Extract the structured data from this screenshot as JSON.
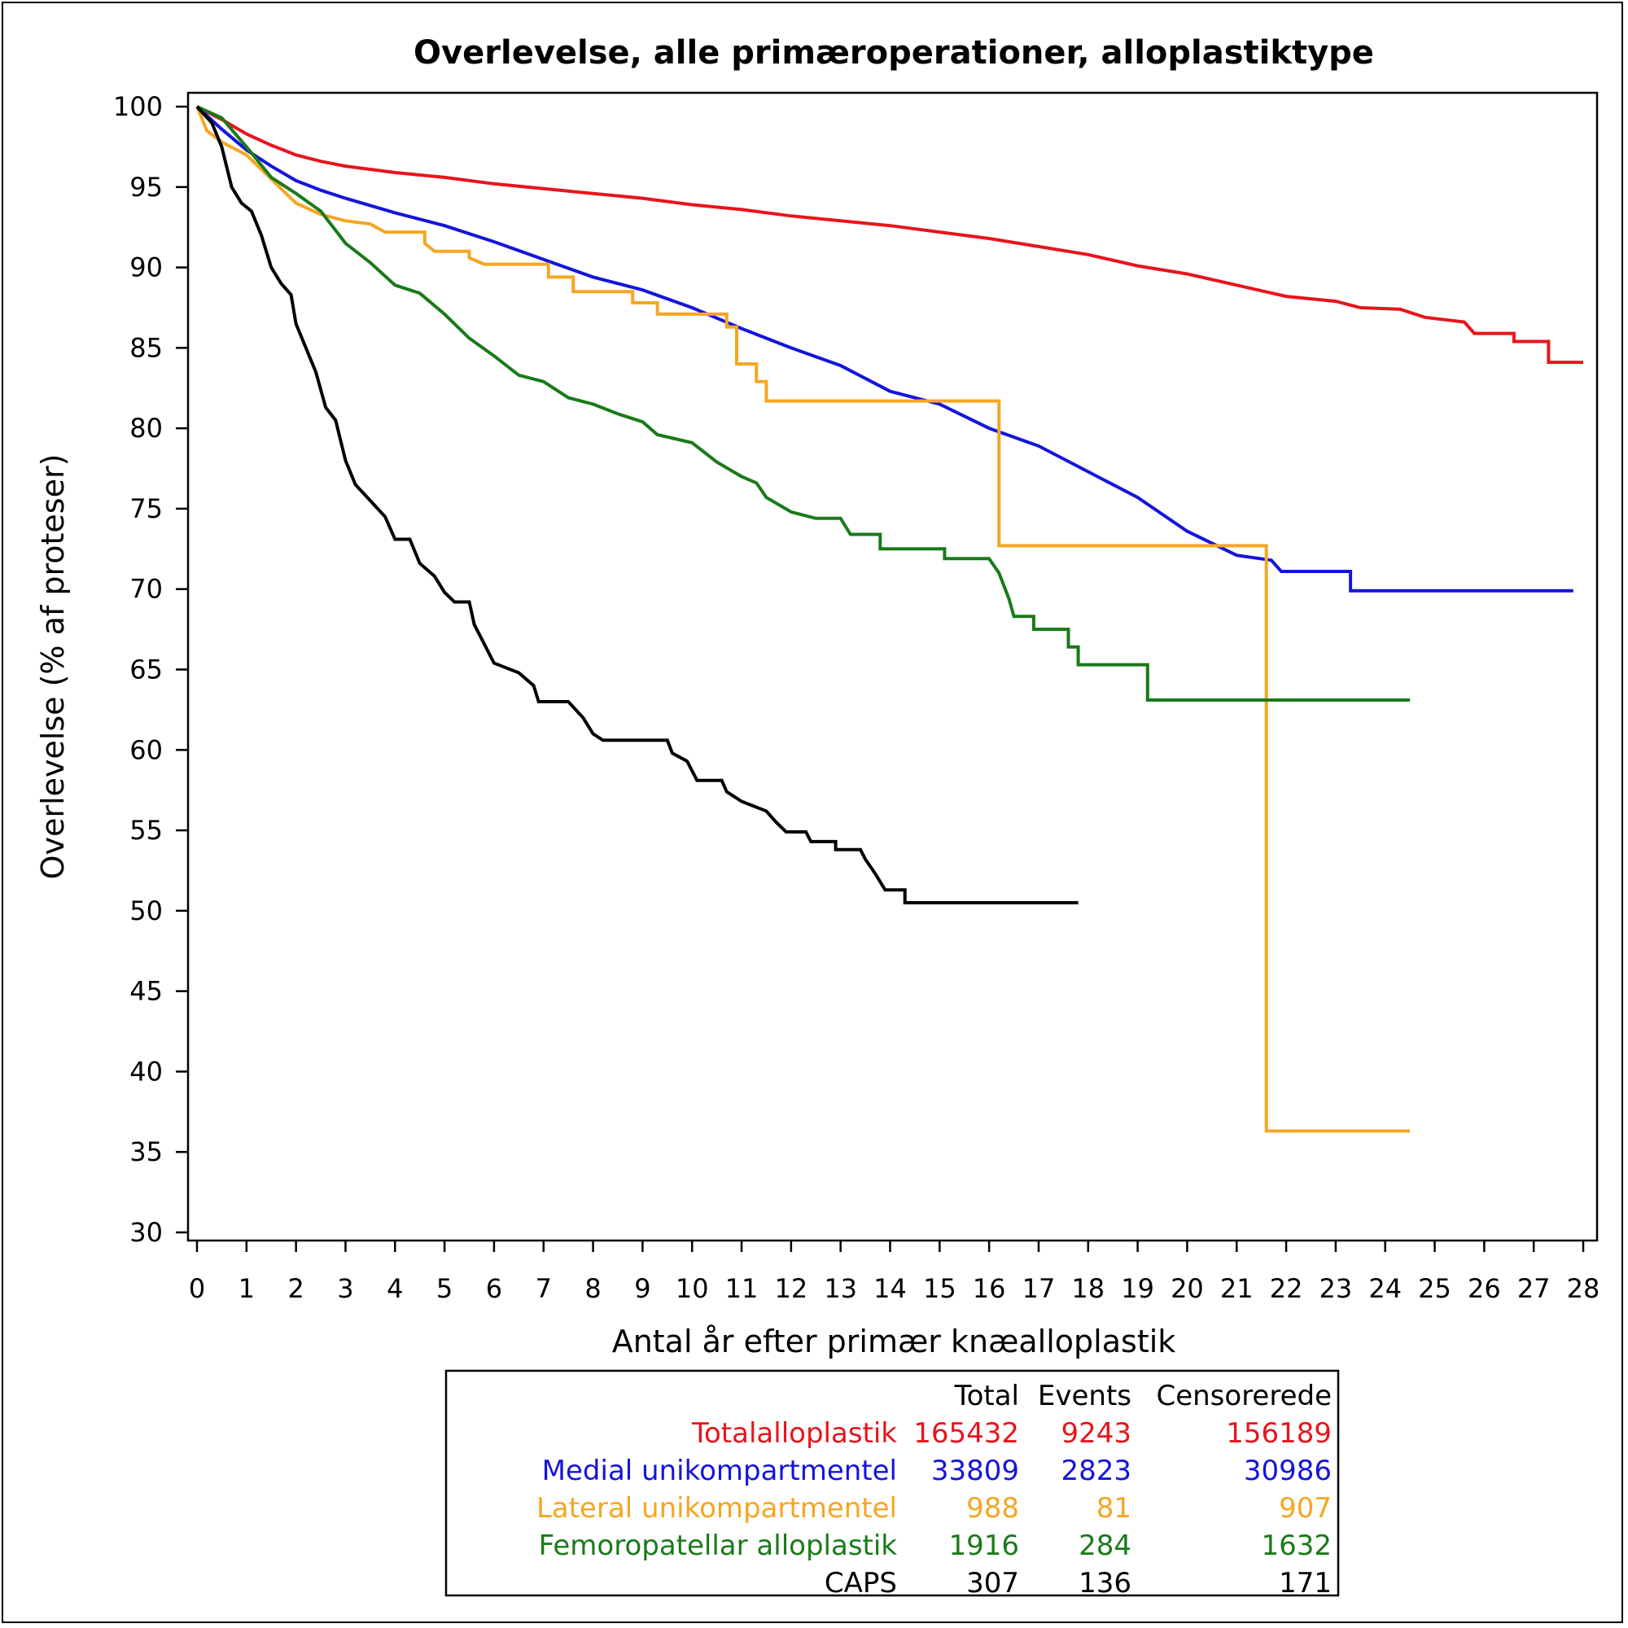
{
  "chart_data": {
    "type": "line",
    "step": true,
    "title": "Overlevelse, alle primæroperationer, alloplastiktype",
    "xlabel": "Antal år efter primær knæalloplastik",
    "ylabel": "Overlevelse (% af proteser)",
    "xlim": [
      0,
      28
    ],
    "ylim": [
      30,
      100
    ],
    "xticks": [
      0,
      1,
      2,
      3,
      4,
      5,
      6,
      7,
      8,
      9,
      10,
      11,
      12,
      13,
      14,
      15,
      16,
      17,
      18,
      19,
      20,
      21,
      22,
      23,
      24,
      25,
      26,
      27,
      28
    ],
    "yticks": [
      30,
      35,
      40,
      45,
      50,
      55,
      60,
      65,
      70,
      75,
      80,
      85,
      90,
      95,
      100
    ],
    "grid": false,
    "legend": {
      "position": "bottom",
      "headers": [
        "Total",
        "Events",
        "Censorerede"
      ]
    },
    "series": [
      {
        "name": "Totalalloplastik",
        "color": "#e8141c",
        "total": "165432",
        "events": "9243",
        "censored": "156189",
        "points": [
          [
            0,
            100
          ],
          [
            0.5,
            99.2
          ],
          [
            1,
            98.3
          ],
          [
            1.5,
            97.6
          ],
          [
            2,
            97
          ],
          [
            2.5,
            96.6
          ],
          [
            3,
            96.3
          ],
          [
            4,
            95.9
          ],
          [
            5,
            95.6
          ],
          [
            6,
            95.2
          ],
          [
            7,
            94.9
          ],
          [
            8,
            94.6
          ],
          [
            9,
            94.3
          ],
          [
            10,
            93.9
          ],
          [
            11,
            93.6
          ],
          [
            12,
            93.2
          ],
          [
            13,
            92.9
          ],
          [
            14,
            92.6
          ],
          [
            15,
            92.2
          ],
          [
            16,
            91.8
          ],
          [
            17,
            91.3
          ],
          [
            18,
            90.8
          ],
          [
            19,
            90.1
          ],
          [
            20,
            89.6
          ],
          [
            21,
            88.9
          ],
          [
            22,
            88.2
          ],
          [
            23,
            87.9
          ],
          [
            23.5,
            87.5
          ],
          [
            24.3,
            87.4
          ],
          [
            24.8,
            86.9
          ],
          [
            25.6,
            86.6
          ],
          [
            25.8,
            85.9
          ],
          [
            26.6,
            85.9
          ],
          [
            26.6,
            85.4
          ],
          [
            27.3,
            85.4
          ],
          [
            27.3,
            84.1
          ],
          [
            28,
            84.1
          ]
        ]
      },
      {
        "name": "Medial unikompartmentel",
        "color": "#1414dc",
        "total": "33809",
        "events": "2823",
        "censored": "30986",
        "points": [
          [
            0,
            100
          ],
          [
            0.5,
            98.6
          ],
          [
            1,
            97.3
          ],
          [
            1.5,
            96.3
          ],
          [
            2,
            95.4
          ],
          [
            2.5,
            94.8
          ],
          [
            3,
            94.3
          ],
          [
            4,
            93.4
          ],
          [
            5,
            92.6
          ],
          [
            6,
            91.6
          ],
          [
            7,
            90.5
          ],
          [
            8,
            89.4
          ],
          [
            9,
            88.6
          ],
          [
            10,
            87.5
          ],
          [
            11,
            86.2
          ],
          [
            12,
            85
          ],
          [
            13,
            83.9
          ],
          [
            14,
            82.3
          ],
          [
            15,
            81.5
          ],
          [
            16,
            80
          ],
          [
            17,
            78.9
          ],
          [
            18,
            77.3
          ],
          [
            19,
            75.7
          ],
          [
            20,
            73.6
          ],
          [
            21,
            72.1
          ],
          [
            21.7,
            71.8
          ],
          [
            21.9,
            71.1
          ],
          [
            23.3,
            71.1
          ],
          [
            23.3,
            69.9
          ],
          [
            27.8,
            69.9
          ]
        ]
      },
      {
        "name": "Lateral unikompartmentel",
        "color": "#f5a623",
        "total": "988",
        "events": "81",
        "censored": "907",
        "points": [
          [
            0,
            100
          ],
          [
            0.2,
            98.5
          ],
          [
            0.5,
            97.8
          ],
          [
            1,
            97
          ],
          [
            1.5,
            95.5
          ],
          [
            2,
            94
          ],
          [
            2.5,
            93.3
          ],
          [
            3,
            92.9
          ],
          [
            3.5,
            92.7
          ],
          [
            3.8,
            92.2
          ],
          [
            4.6,
            92.2
          ],
          [
            4.6,
            91.5
          ],
          [
            4.8,
            91
          ],
          [
            5.5,
            91
          ],
          [
            5.5,
            90.6
          ],
          [
            5.8,
            90.2
          ],
          [
            7.1,
            90.2
          ],
          [
            7.1,
            89.4
          ],
          [
            7.6,
            89.4
          ],
          [
            7.6,
            88.5
          ],
          [
            8.8,
            88.5
          ],
          [
            8.8,
            87.8
          ],
          [
            9.3,
            87.8
          ],
          [
            9.3,
            87.1
          ],
          [
            10.7,
            87.1
          ],
          [
            10.7,
            86.3
          ],
          [
            10.9,
            86.3
          ],
          [
            10.9,
            84
          ],
          [
            11.3,
            84
          ],
          [
            11.3,
            82.9
          ],
          [
            11.5,
            82.9
          ],
          [
            11.5,
            81.7
          ],
          [
            16.2,
            81.7
          ],
          [
            16.2,
            72.7
          ],
          [
            21.6,
            72.7
          ],
          [
            21.6,
            36.3
          ],
          [
            24.5,
            36.3
          ]
        ]
      },
      {
        "name": "Femoropatellar alloplastik",
        "color": "#1a7a1a",
        "total": "1916",
        "events": "284",
        "censored": "1632",
        "points": [
          [
            0,
            100
          ],
          [
            0.5,
            99.3
          ],
          [
            1,
            97.5
          ],
          [
            1.5,
            95.6
          ],
          [
            2,
            94.6
          ],
          [
            2.5,
            93.5
          ],
          [
            3,
            91.5
          ],
          [
            3.5,
            90.3
          ],
          [
            4,
            88.9
          ],
          [
            4.5,
            88.4
          ],
          [
            5,
            87.1
          ],
          [
            5.5,
            85.6
          ],
          [
            6,
            84.5
          ],
          [
            6.5,
            83.3
          ],
          [
            7,
            82.9
          ],
          [
            7.5,
            81.9
          ],
          [
            8,
            81.5
          ],
          [
            8.5,
            80.9
          ],
          [
            9,
            80.4
          ],
          [
            9.3,
            79.6
          ],
          [
            10,
            79.1
          ],
          [
            10.5,
            77.9
          ],
          [
            11,
            77
          ],
          [
            11.3,
            76.6
          ],
          [
            11.5,
            75.7
          ],
          [
            12,
            74.8
          ],
          [
            12.5,
            74.4
          ],
          [
            13,
            74.4
          ],
          [
            13.2,
            73.4
          ],
          [
            13.8,
            73.4
          ],
          [
            13.8,
            72.5
          ],
          [
            15.1,
            72.5
          ],
          [
            15.1,
            71.9
          ],
          [
            16,
            71.9
          ],
          [
            16.2,
            71
          ],
          [
            16.4,
            69.4
          ],
          [
            16.5,
            68.3
          ],
          [
            16.9,
            68.3
          ],
          [
            16.9,
            67.5
          ],
          [
            17.6,
            67.5
          ],
          [
            17.6,
            66.4
          ],
          [
            17.8,
            66.4
          ],
          [
            17.8,
            65.3
          ],
          [
            19.2,
            65.3
          ],
          [
            19.2,
            63.1
          ],
          [
            24.5,
            63.1
          ]
        ]
      },
      {
        "name": "CAPS",
        "color": "#000000",
        "total": "307",
        "events": "136",
        "censored": "171",
        "points": [
          [
            0,
            100
          ],
          [
            0.3,
            99
          ],
          [
            0.5,
            97.5
          ],
          [
            0.7,
            95
          ],
          [
            0.9,
            94
          ],
          [
            1.1,
            93.5
          ],
          [
            1.3,
            92
          ],
          [
            1.5,
            90
          ],
          [
            1.7,
            89
          ],
          [
            1.9,
            88.3
          ],
          [
            2,
            86.5
          ],
          [
            2.2,
            85
          ],
          [
            2.4,
            83.5
          ],
          [
            2.6,
            81.3
          ],
          [
            2.8,
            80.5
          ],
          [
            3,
            78
          ],
          [
            3.2,
            76.5
          ],
          [
            3.5,
            75.5
          ],
          [
            3.8,
            74.5
          ],
          [
            4,
            73.1
          ],
          [
            4.3,
            73.1
          ],
          [
            4.5,
            71.6
          ],
          [
            4.8,
            70.8
          ],
          [
            5,
            69.8
          ],
          [
            5.2,
            69.2
          ],
          [
            5.5,
            69.2
          ],
          [
            5.6,
            67.8
          ],
          [
            5.8,
            66.6
          ],
          [
            6,
            65.4
          ],
          [
            6.5,
            64.8
          ],
          [
            6.8,
            64
          ],
          [
            6.9,
            63
          ],
          [
            7.5,
            63
          ],
          [
            7.8,
            62
          ],
          [
            8,
            61
          ],
          [
            8.2,
            60.6
          ],
          [
            9.5,
            60.6
          ],
          [
            9.6,
            59.8
          ],
          [
            9.9,
            59.3
          ],
          [
            10.1,
            58.1
          ],
          [
            10.6,
            58.1
          ],
          [
            10.7,
            57.4
          ],
          [
            11,
            56.8
          ],
          [
            11.5,
            56.2
          ],
          [
            11.7,
            55.5
          ],
          [
            11.9,
            54.9
          ],
          [
            12.3,
            54.9
          ],
          [
            12.4,
            54.3
          ],
          [
            12.9,
            54.3
          ],
          [
            12.9,
            53.8
          ],
          [
            13.4,
            53.8
          ],
          [
            13.5,
            53.2
          ],
          [
            13.7,
            52.3
          ],
          [
            13.9,
            51.3
          ],
          [
            14.3,
            51.3
          ],
          [
            14.3,
            50.5
          ],
          [
            17.8,
            50.5
          ]
        ]
      }
    ]
  }
}
